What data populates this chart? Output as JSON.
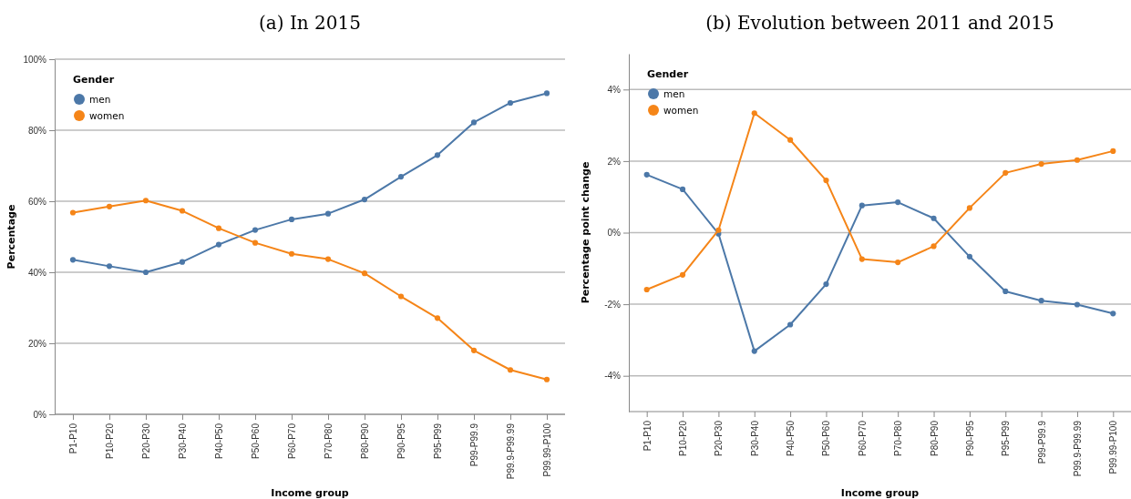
{
  "chart_data": [
    {
      "type": "line",
      "title": "(a) In 2015",
      "xlabel": "Income group",
      "ylabel": "Percentage",
      "legend_title": "Gender",
      "legend": "top left",
      "grid": "y",
      "marker": "circle",
      "categories": [
        "P1-P10",
        "P10-P20",
        "P20-P30",
        "P30-P40",
        "P40-P50",
        "P50-P60",
        "P60-P70",
        "P70-P80",
        "P80-P90",
        "P90-P95",
        "P95-P99",
        "P99-P99.9",
        "P99.9-P99.99",
        "P99.99-P100"
      ],
      "ylim": [
        0,
        100
      ],
      "yticks": [
        {
          "value": 0,
          "label": "0%"
        },
        {
          "value": 20,
          "label": "20%"
        },
        {
          "value": 40,
          "label": "40%"
        },
        {
          "value": 60,
          "label": "60%"
        },
        {
          "value": 80,
          "label": "80%"
        },
        {
          "value": 100,
          "label": "100%"
        }
      ],
      "series": [
        {
          "name": "men",
          "color": "#4c78a8",
          "values": [
            43.5,
            41.7,
            40.0,
            42.9,
            47.8,
            51.9,
            54.9,
            56.5,
            60.5,
            66.9,
            73.0,
            82.2,
            87.7,
            90.4
          ]
        },
        {
          "name": "women",
          "color": "#f58518",
          "values": [
            56.8,
            58.5,
            60.2,
            57.3,
            52.4,
            48.3,
            45.2,
            43.7,
            39.7,
            33.2,
            27.1,
            18.0,
            12.5,
            9.8
          ]
        }
      ]
    },
    {
      "type": "line",
      "title": "(b) Evolution between 2011 and 2015",
      "xlabel": "Income group",
      "ylabel": "Percentage point change",
      "legend_title": "Gender",
      "legend": "top left",
      "grid": "y",
      "marker": "circle",
      "categories": [
        "P1-P10",
        "P10-P20",
        "P20-P30",
        "P30-P40",
        "P40-P50",
        "P50-P60",
        "P60-P70",
        "P70-P80",
        "P80-P90",
        "P90-P95",
        "P95-P99",
        "P99-P99.9",
        "P99.9-P99.99",
        "P99.99-P100"
      ],
      "ylim": [
        -5,
        5
      ],
      "yticks": [
        {
          "value": -4,
          "label": "-4%"
        },
        {
          "value": -2,
          "label": "-2%"
        },
        {
          "value": 0,
          "label": "0%"
        },
        {
          "value": 2,
          "label": "2%"
        },
        {
          "value": 4,
          "label": "4%"
        }
      ],
      "series": [
        {
          "name": "men",
          "color": "#4c78a8",
          "values": [
            1.62,
            1.21,
            -0.03,
            -3.31,
            -2.57,
            -1.44,
            0.76,
            0.85,
            0.4,
            -0.67,
            -1.64,
            -1.9,
            -2.01,
            -2.26
          ]
        },
        {
          "name": "women",
          "color": "#f58518",
          "values": [
            -1.59,
            -1.18,
            0.07,
            3.34,
            2.59,
            1.46,
            -0.74,
            -0.83,
            -0.38,
            0.69,
            1.67,
            1.92,
            2.03,
            2.28
          ]
        }
      ]
    }
  ]
}
